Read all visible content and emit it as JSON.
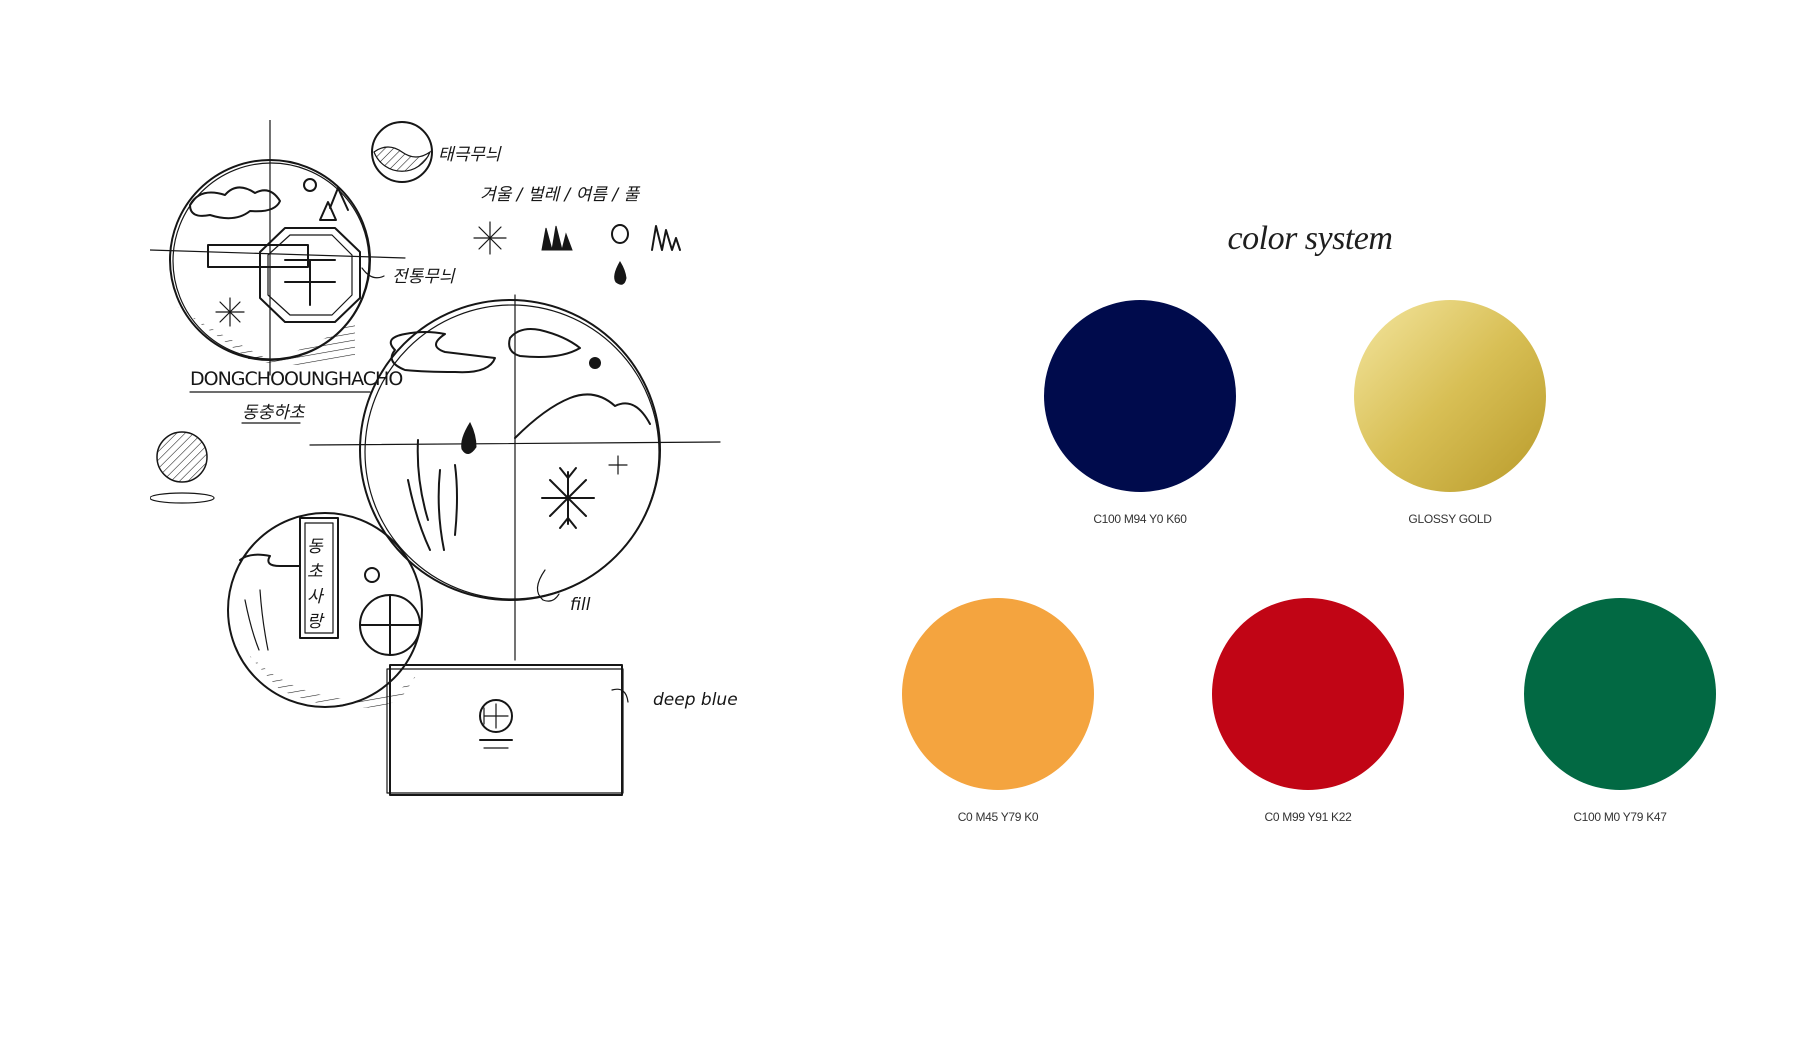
{
  "sketch": {
    "brand_text": "DONGCHOOUNGHACHO",
    "korean_caption": "동충하초",
    "note_traditional_pattern": "전통무늬",
    "note_taeguk": "태극무늬",
    "seasons_label": "겨울 / 벌레 / 여름 / 풀",
    "vertical_name": [
      "동",
      "초",
      "사",
      "랑"
    ],
    "note_fill": "fill",
    "note_deep_blue": "deep blue"
  },
  "color_system": {
    "title": "color system",
    "swatches": [
      {
        "label": "C100  M94  Y0  K60",
        "color": "#000b4c"
      },
      {
        "label": "GLOSSY GOLD",
        "color": "#d9c255",
        "gradient": [
          "#f4e6a0",
          "#d8bf55",
          "#b89a2a"
        ]
      },
      {
        "label": "C0  M45  Y79  K0",
        "color": "#f4a43f"
      },
      {
        "label": "C0  M99  Y91  K22",
        "color": "#c10515"
      },
      {
        "label": "C100  M0  Y79  K47",
        "color": "#026943"
      }
    ]
  }
}
